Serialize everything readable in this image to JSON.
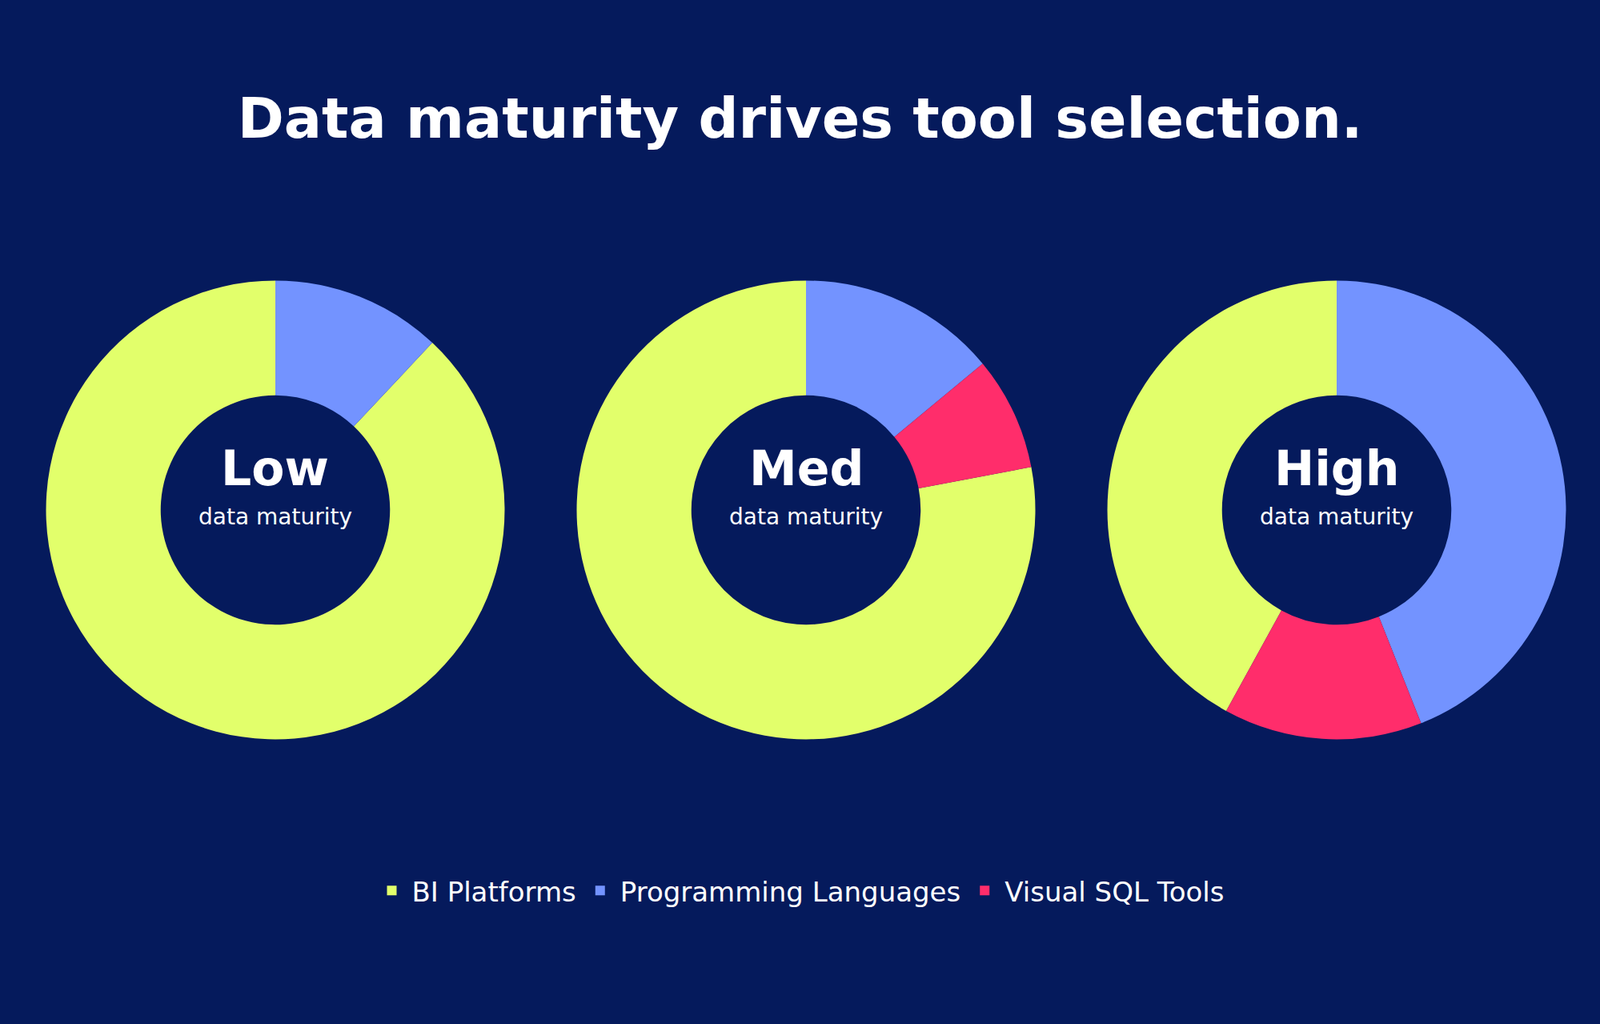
{
  "title": "Data maturity drives tool selection.",
  "chart_data": [
    {
      "type": "pie",
      "title": "Low",
      "subtitle": "data maturity",
      "categories": [
        "BI Platforms",
        "Programming Languages"
      ],
      "values": [
        88,
        12
      ],
      "colors": [
        "#E2FF6B",
        "#7393FF"
      ],
      "legend": "bottom"
    },
    {
      "type": "pie",
      "title": "Med",
      "subtitle": "data maturity",
      "categories": [
        "BI Platforms",
        "Programming Languages",
        "Visual SQL Tools"
      ],
      "values": [
        78,
        14,
        8
      ],
      "colors": [
        "#E2FF6B",
        "#7393FF",
        "#FF2D6B"
      ],
      "legend": "bottom"
    },
    {
      "type": "pie",
      "title": "High",
      "subtitle": "data maturity",
      "categories": [
        "BI Platforms",
        "Programming Languages",
        "Visual SQL Tools"
      ],
      "values": [
        42,
        44,
        14
      ],
      "colors": [
        "#E2FF6B",
        "#7393FF",
        "#FF2D6B"
      ],
      "legend": "bottom"
    }
  ]
}
